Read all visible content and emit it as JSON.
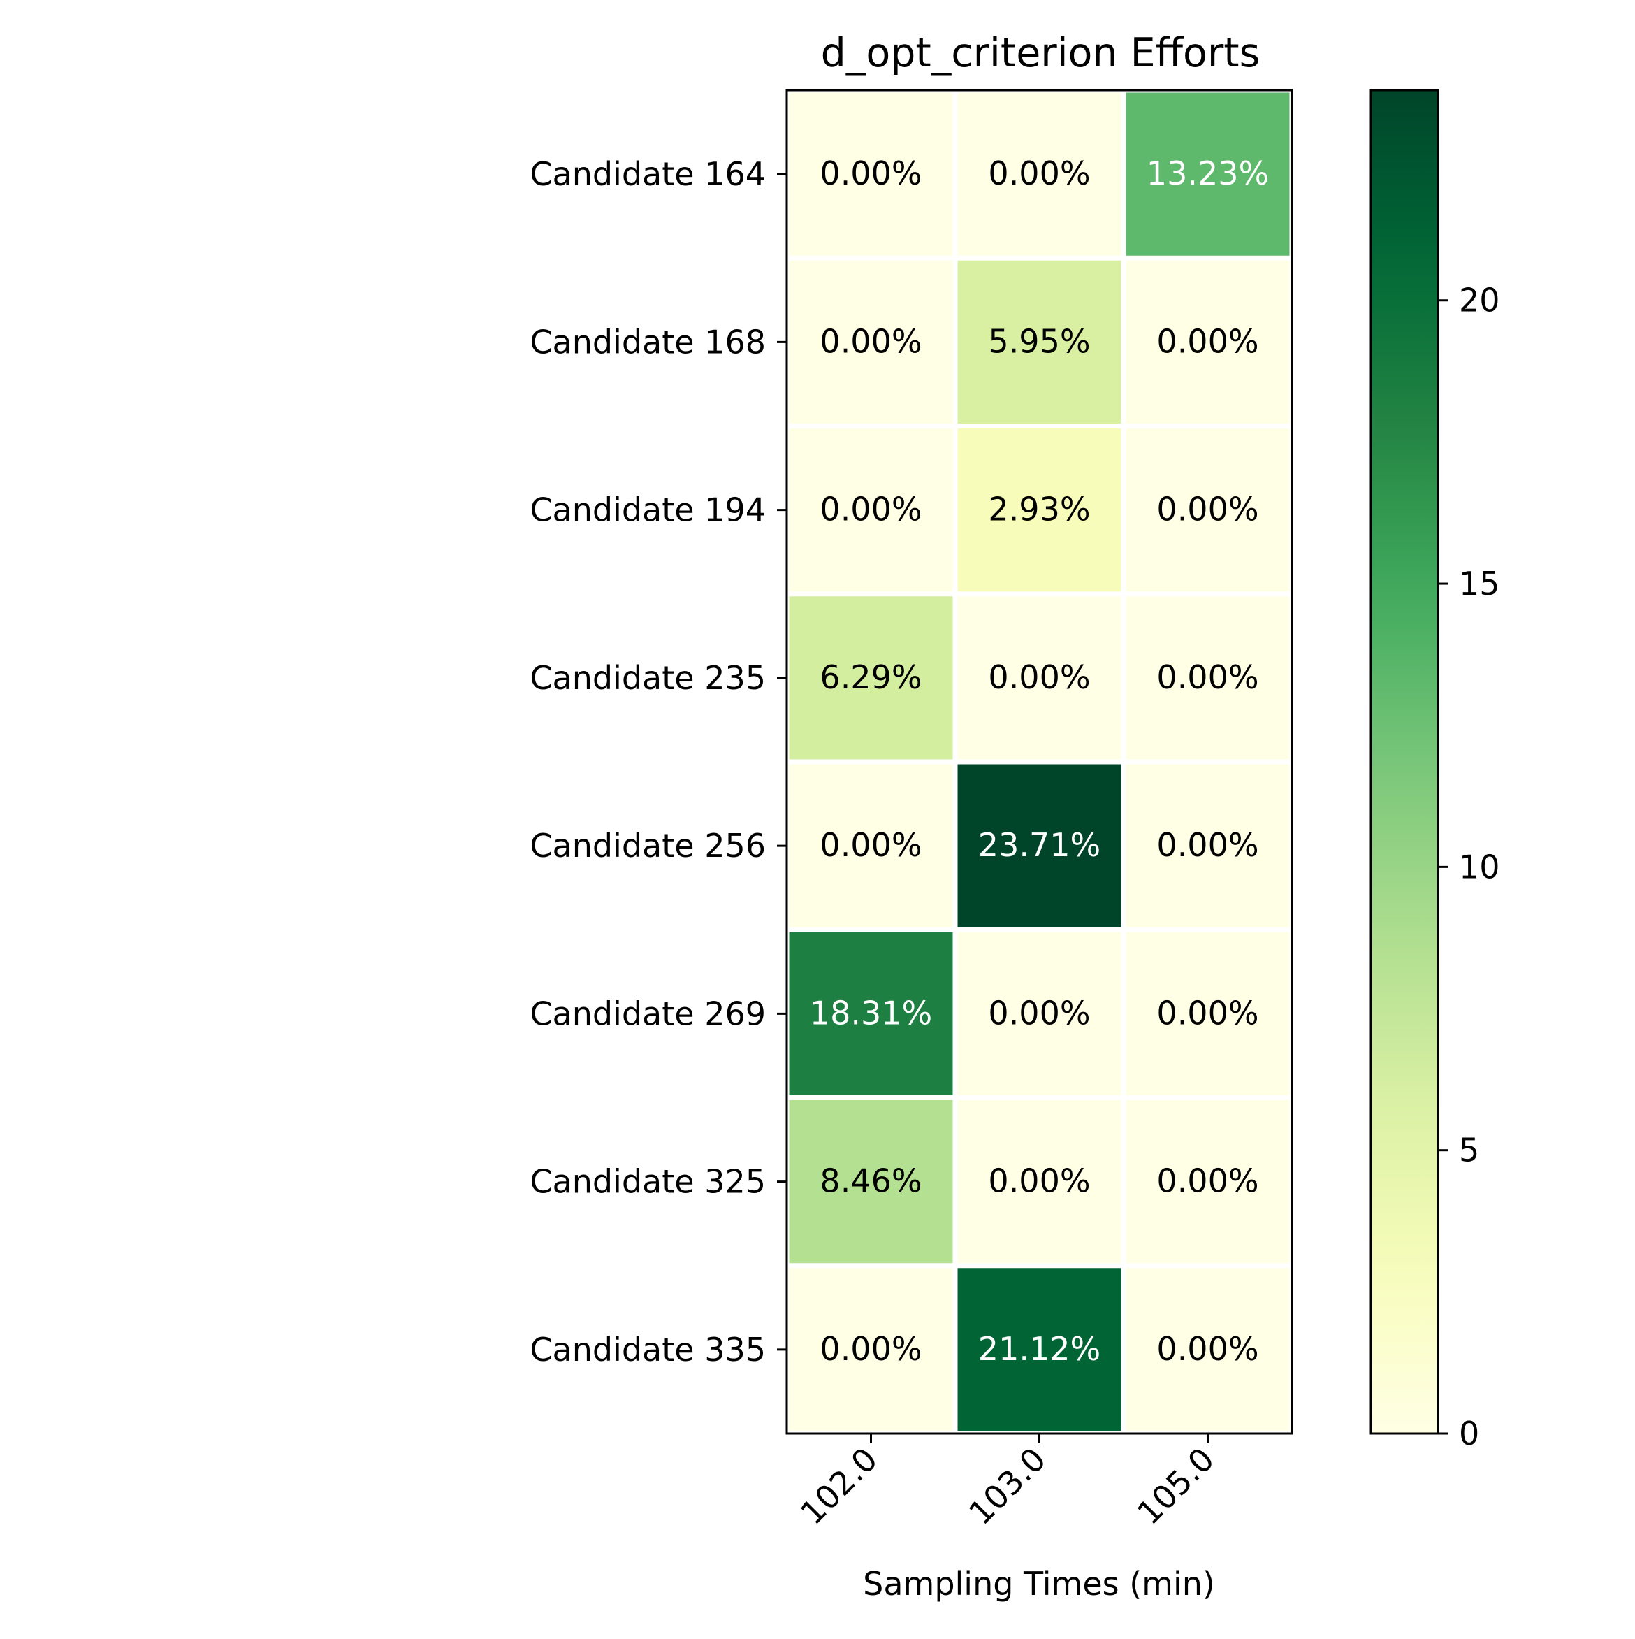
{
  "chart_data": {
    "type": "heatmap",
    "title": "d_opt_criterion Efforts",
    "xlabel": "Sampling Times (min)",
    "ylabel": "",
    "x_categories": [
      "102.0",
      "103.0",
      "105.0"
    ],
    "y_categories": [
      "Candidate 164",
      "Candidate 168",
      "Candidate 194",
      "Candidate 235",
      "Candidate 256",
      "Candidate 269",
      "Candidate 325",
      "Candidate 335"
    ],
    "values": [
      [
        0.0,
        0.0,
        13.23
      ],
      [
        0.0,
        5.95,
        0.0
      ],
      [
        0.0,
        2.93,
        0.0
      ],
      [
        6.29,
        0.0,
        0.0
      ],
      [
        0.0,
        23.71,
        0.0
      ],
      [
        18.31,
        0.0,
        0.0
      ],
      [
        8.46,
        0.0,
        0.0
      ],
      [
        0.0,
        21.12,
        0.0
      ]
    ],
    "value_format": "percent_2dp",
    "colormap": "YlGn",
    "colorbar": {
      "range": [
        0,
        23.71
      ],
      "ticks": [
        0,
        5,
        10,
        15,
        20
      ]
    },
    "grid": false,
    "legend": "colorbar-right"
  }
}
